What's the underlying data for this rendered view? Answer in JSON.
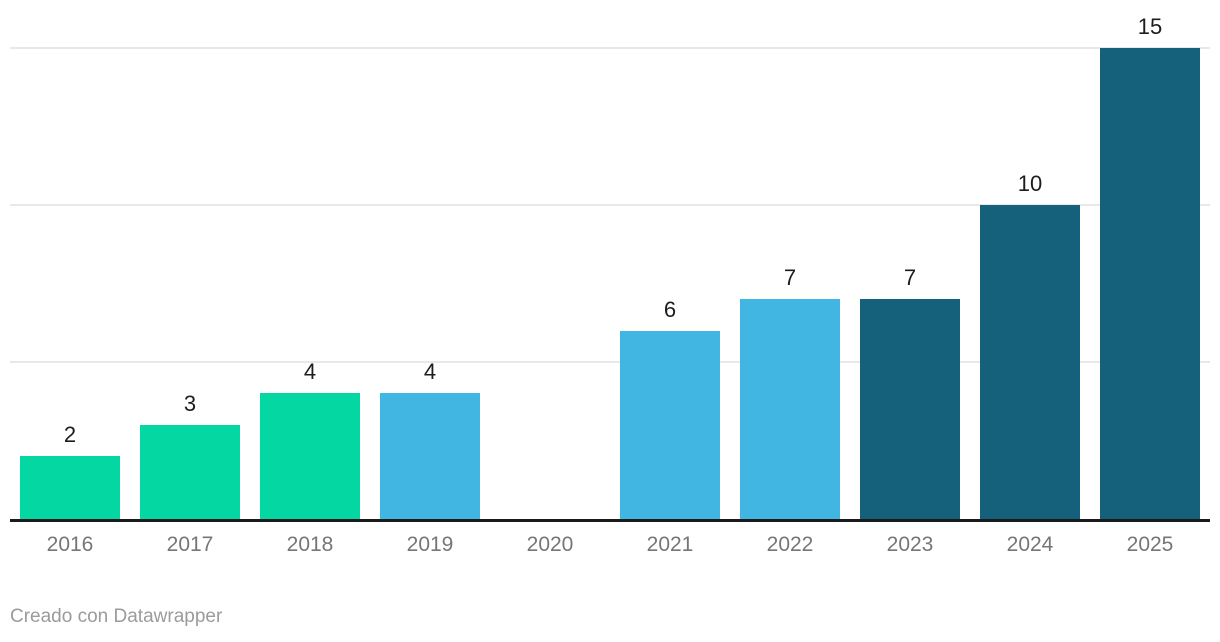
{
  "chart_data": {
    "type": "bar",
    "title": "",
    "xlabel": "",
    "ylabel": "",
    "categories": [
      "2016",
      "2017",
      "2018",
      "2019",
      "2020",
      "2021",
      "2022",
      "2023",
      "2024",
      "2025"
    ],
    "values": [
      2,
      3,
      4,
      4,
      0,
      6,
      7,
      7,
      10,
      15
    ],
    "bar_colors": [
      "#05d7a3",
      "#05d7a3",
      "#05d7a3",
      "#41b6e3",
      "#41b6e3",
      "#41b6e3",
      "#41b6e3",
      "#15607a",
      "#15607a",
      "#15607a"
    ],
    "ylim": [
      0,
      15
    ],
    "gridline_values": [
      5,
      10,
      15
    ],
    "grid": "horizontal",
    "y_tick_labels": "none",
    "legend": "none",
    "data_labels": true
  },
  "colors": {
    "green": "#05d7a3",
    "light_blue": "#41b6e3",
    "dark_teal": "#15607a",
    "gridline": "#e8e8e8",
    "axis_line": "#1a1a1a",
    "axis_label": "#767676",
    "data_label": "#1d1d1d",
    "credit_text": "#9b9b9b",
    "background": "#ffffff"
  },
  "footer": {
    "credit": "Creado con Datawrapper"
  }
}
